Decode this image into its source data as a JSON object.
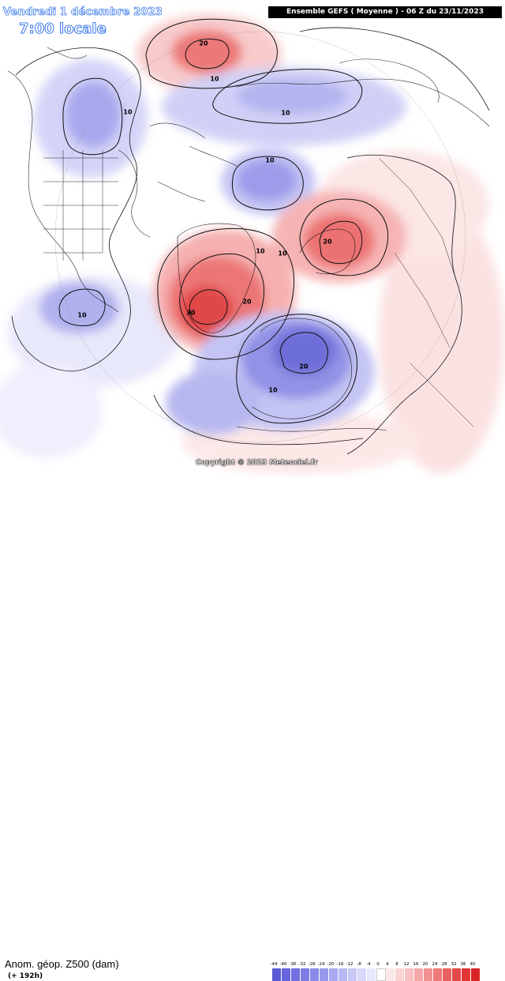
{
  "header": {
    "date_line": "Vendredi 1 décembre 2023",
    "time_line": "7:00 locale",
    "model_line": "Ensemble GEFS  ( Moyenne )  -  06 Z du 23/11/2023"
  },
  "footer": {
    "variable": "Anom. géop. Z500 (dam)",
    "lead": "(+ 192h)",
    "copyright": "Copyright © 2023 Meteociel.fr"
  },
  "legend": {
    "ticks": [
      "-44",
      "-40",
      "-36",
      "-32",
      "-28",
      "-24",
      "-20",
      "-16",
      "-12",
      "-8",
      "-4",
      "0",
      "4",
      "8",
      "12",
      "16",
      "20",
      "24",
      "28",
      "32",
      "36",
      "40"
    ],
    "colors": [
      "#5a5ad6",
      "#6464dc",
      "#7070e0",
      "#7c7ce4",
      "#8a8ae8",
      "#9898ec",
      "#a8a8f0",
      "#b8b8f4",
      "#c8c8f8",
      "#d8d8fa",
      "#e8e8fc",
      "#ffffff",
      "#fce8e8",
      "#fad4d4",
      "#f8c0c0",
      "#f4a8a8",
      "#f09090",
      "#ec7878",
      "#e86060",
      "#e44848",
      "#e03636",
      "#d82424"
    ]
  },
  "contour_labels": [
    {
      "text": "20"
    },
    {
      "text": "10"
    },
    {
      "text": "10"
    },
    {
      "text": "10"
    },
    {
      "text": "10"
    },
    {
      "text": "10"
    },
    {
      "text": "10"
    },
    {
      "text": "20"
    },
    {
      "text": "30"
    },
    {
      "text": "20"
    },
    {
      "text": "20"
    },
    {
      "text": "10"
    },
    {
      "text": "10"
    }
  ],
  "map": {
    "anomalies": [
      {
        "name": "north-pacific-positive",
        "sign": "positive",
        "peak_dam": 20
      },
      {
        "name": "north-america-negative",
        "sign": "negative",
        "peak_dam": -10
      },
      {
        "name": "arctic-negative",
        "sign": "negative",
        "peak_dam": -10
      },
      {
        "name": "svalbard-negative",
        "sign": "negative",
        "peak_dam": -10
      },
      {
        "name": "greenland-positive",
        "sign": "positive",
        "peak_dam": 30
      },
      {
        "name": "scandinavia-positive",
        "sign": "positive",
        "peak_dam": 20
      },
      {
        "name": "europe-negative",
        "sign": "negative",
        "peak_dam": -20
      },
      {
        "name": "gulf-negative",
        "sign": "negative",
        "peak_dam": -10
      }
    ]
  }
}
